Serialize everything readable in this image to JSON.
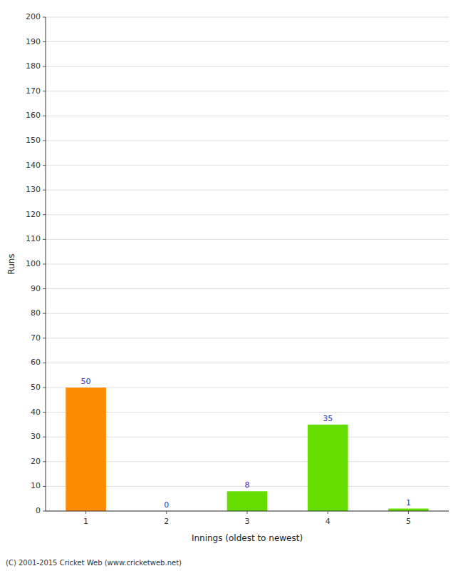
{
  "chart_data": {
    "type": "bar",
    "xlabel": "Innings (oldest to newest)",
    "ylabel": "Runs",
    "categories": [
      "1",
      "2",
      "3",
      "4",
      "5"
    ],
    "values": [
      50,
      0,
      8,
      35,
      1
    ],
    "colors": [
      "#ff8c00",
      "#66dd00",
      "#66dd00",
      "#66dd00",
      "#66dd00"
    ],
    "ylim": [
      0,
      200
    ],
    "yticks": [
      0,
      10,
      20,
      30,
      40,
      50,
      60,
      70,
      80,
      90,
      100,
      110,
      120,
      130,
      140,
      150,
      160,
      170,
      180,
      190,
      200
    ],
    "grid": true,
    "data_labels": true,
    "annotations": [
      "(C) 2001-2015 Cricket Web (www.cricketweb.net)"
    ]
  }
}
